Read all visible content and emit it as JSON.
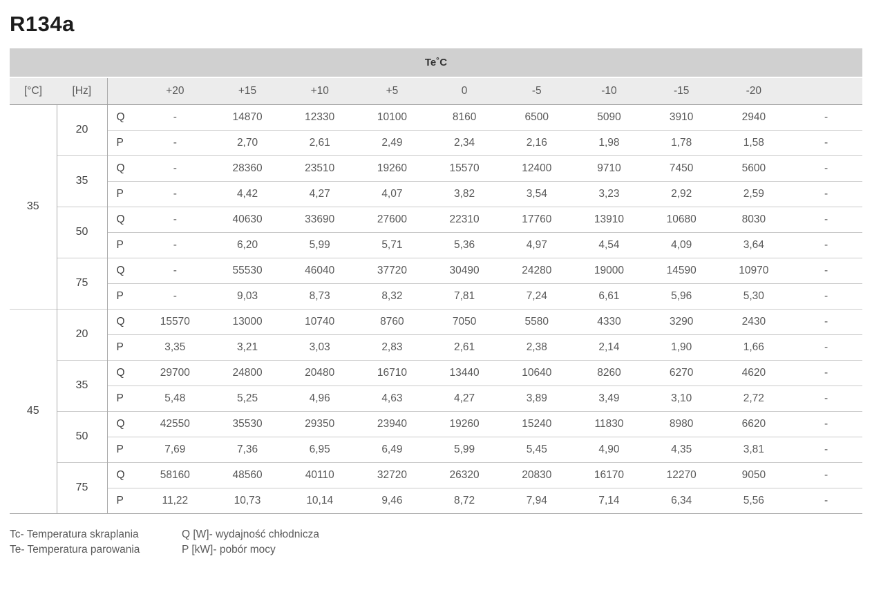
{
  "title": "R134a",
  "table": {
    "te_header": "Te˚C",
    "col_headers": [
      "[°C]",
      "[Hz]"
    ],
    "te_values": [
      "+20",
      "+15",
      "+10",
      "+5",
      "0",
      "-5",
      "-10",
      "-15",
      "-20",
      ""
    ],
    "q_label": "Q",
    "p_label": "P",
    "groups": [
      {
        "tc": "35",
        "rows": [
          {
            "hz": "20",
            "q": [
              "-",
              "14870",
              "12330",
              "10100",
              "8160",
              "6500",
              "5090",
              "3910",
              "2940",
              "-"
            ],
            "p": [
              "-",
              "2,70",
              "2,61",
              "2,49",
              "2,34",
              "2,16",
              "1,98",
              "1,78",
              "1,58",
              "-"
            ]
          },
          {
            "hz": "35",
            "q": [
              "-",
              "28360",
              "23510",
              "19260",
              "15570",
              "12400",
              "9710",
              "7450",
              "5600",
              "-"
            ],
            "p": [
              "-",
              "4,42",
              "4,27",
              "4,07",
              "3,82",
              "3,54",
              "3,23",
              "2,92",
              "2,59",
              "-"
            ]
          },
          {
            "hz": "50",
            "q": [
              "-",
              "40630",
              "33690",
              "27600",
              "22310",
              "17760",
              "13910",
              "10680",
              "8030",
              "-"
            ],
            "p": [
              "-",
              "6,20",
              "5,99",
              "5,71",
              "5,36",
              "4,97",
              "4,54",
              "4,09",
              "3,64",
              "-"
            ]
          },
          {
            "hz": "75",
            "q": [
              "-",
              "55530",
              "46040",
              "37720",
              "30490",
              "24280",
              "19000",
              "14590",
              "10970",
              "-"
            ],
            "p": [
              "-",
              "9,03",
              "8,73",
              "8,32",
              "7,81",
              "7,24",
              "6,61",
              "5,96",
              "5,30",
              "-"
            ]
          }
        ]
      },
      {
        "tc": "45",
        "rows": [
          {
            "hz": "20",
            "q": [
              "15570",
              "13000",
              "10740",
              "8760",
              "7050",
              "5580",
              "4330",
              "3290",
              "2430",
              "-"
            ],
            "p": [
              "3,35",
              "3,21",
              "3,03",
              "2,83",
              "2,61",
              "2,38",
              "2,14",
              "1,90",
              "1,66",
              "-"
            ]
          },
          {
            "hz": "35",
            "q": [
              "29700",
              "24800",
              "20480",
              "16710",
              "13440",
              "10640",
              "8260",
              "6270",
              "4620",
              "-"
            ],
            "p": [
              "5,48",
              "5,25",
              "4,96",
              "4,63",
              "4,27",
              "3,89",
              "3,49",
              "3,10",
              "2,72",
              "-"
            ]
          },
          {
            "hz": "50",
            "q": [
              "42550",
              "35530",
              "29350",
              "23940",
              "19260",
              "15240",
              "11830",
              "8980",
              "6620",
              "-"
            ],
            "p": [
              "7,69",
              "7,36",
              "6,95",
              "6,49",
              "5,99",
              "5,45",
              "4,90",
              "4,35",
              "3,81",
              "-"
            ]
          },
          {
            "hz": "75",
            "q": [
              "58160",
              "48560",
              "40110",
              "32720",
              "26320",
              "20830",
              "16170",
              "12270",
              "9050",
              "-"
            ],
            "p": [
              "11,22",
              "10,73",
              "10,14",
              "9,46",
              "8,72",
              "7,94",
              "7,14",
              "6,34",
              "5,56",
              "-"
            ]
          }
        ]
      }
    ]
  },
  "legend": {
    "tc": "Tc- Temperatura skraplania",
    "te": "Te- Temperatura parowania",
    "q": "Q [W]- wydajność chłodnicza",
    "p": "P [kW]- pobór mocy"
  },
  "colors": {
    "header_bar": "#d0d0d0",
    "subheader_bar": "#ececec",
    "border_dark": "#9c9c9c",
    "border_light": "#c9c9c9",
    "border_vertical": "#ababab",
    "title_text": "#1c1c1c",
    "value_text": "#595959"
  }
}
